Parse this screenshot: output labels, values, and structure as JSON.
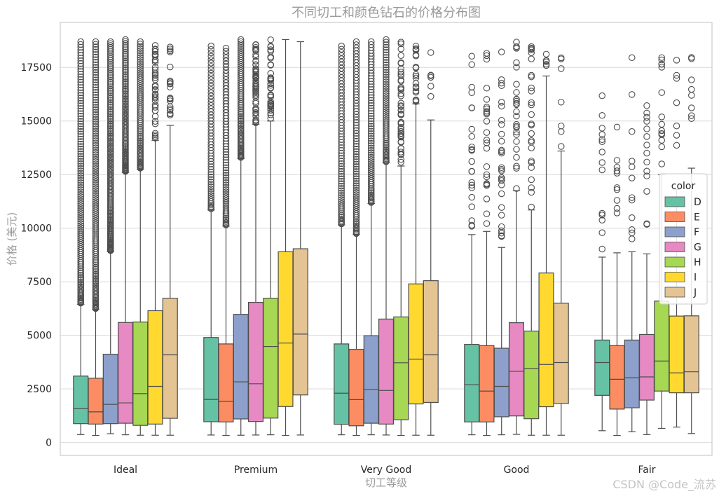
{
  "chart_data": {
    "type": "box",
    "title": "不同切工和颜色钻石的价格分布图",
    "xlabel": "切工等级",
    "ylabel": "价格 (美元)",
    "ylim": [
      -600,
      19600
    ],
    "yticks": [
      0,
      2500,
      5000,
      7500,
      10000,
      12500,
      15000,
      17500
    ],
    "categories": [
      "Ideal",
      "Premium",
      "Very Good",
      "Good",
      "Fair"
    ],
    "legend": {
      "title": "color",
      "position": "right",
      "entries": [
        "D",
        "E",
        "F",
        "G",
        "H",
        "I",
        "J"
      ]
    },
    "series": [
      {
        "name": "D",
        "color": "#66c2a5",
        "boxes": [
          {
            "whislo": 370,
            "q1": 880,
            "med": 1580,
            "q3": 3100,
            "whishi": 6450,
            "fliers": {
              "lo": 6500,
              "hi": 18700,
              "n": 120
            }
          },
          {
            "whislo": 350,
            "q1": 970,
            "med": 2010,
            "q3": 4900,
            "whishi": 10850,
            "fliers": {
              "lo": 10900,
              "hi": 18500,
              "n": 60
            }
          },
          {
            "whislo": 360,
            "q1": 850,
            "med": 2300,
            "q3": 4600,
            "whishi": 10150,
            "fliers": {
              "lo": 10200,
              "hi": 18500,
              "n": 70
            }
          },
          {
            "whislo": 360,
            "q1": 960,
            "med": 2700,
            "q3": 4580,
            "whishi": 9700,
            "fliers": {
              "lo": 10000,
              "hi": 18400,
              "n": 22
            }
          },
          {
            "whislo": 550,
            "q1": 2200,
            "med": 3730,
            "q3": 4780,
            "whishi": 8650,
            "fliers": {
              "lo": 8700,
              "hi": 16400,
              "n": 14
            }
          }
        ]
      },
      {
        "name": "E",
        "color": "#fc8d62",
        "boxes": [
          {
            "whislo": 330,
            "q1": 860,
            "med": 1430,
            "q3": 3000,
            "whishi": 6200,
            "fliers": {
              "lo": 6250,
              "hi": 18700,
              "n": 130
            }
          },
          {
            "whislo": 330,
            "q1": 960,
            "med": 1920,
            "q3": 4600,
            "whishi": 10100,
            "fliers": {
              "lo": 10150,
              "hi": 18400,
              "n": 70
            }
          },
          {
            "whislo": 330,
            "q1": 780,
            "med": 2000,
            "q3": 4350,
            "whishi": 9700,
            "fliers": {
              "lo": 9750,
              "hi": 18700,
              "n": 80
            }
          },
          {
            "whislo": 330,
            "q1": 960,
            "med": 2400,
            "q3": 4520,
            "whishi": 9850,
            "fliers": {
              "lo": 10000,
              "hi": 18200,
              "n": 24
            }
          },
          {
            "whislo": 330,
            "q1": 1560,
            "med": 2950,
            "q3": 4520,
            "whishi": 8850,
            "fliers": {
              "lo": 8950,
              "hi": 15600,
              "n": 10
            }
          }
        ]
      },
      {
        "name": "F",
        "color": "#8da0cb",
        "boxes": [
          {
            "whislo": 410,
            "q1": 880,
            "med": 1780,
            "q3": 4120,
            "whishi": 8900,
            "fliers": {
              "lo": 8950,
              "hi": 18700,
              "n": 140
            }
          },
          {
            "whislo": 340,
            "q1": 1100,
            "med": 2830,
            "q3": 5980,
            "whishi": 13250,
            "fliers": {
              "lo": 13300,
              "hi": 18800,
              "n": 70
            }
          },
          {
            "whislo": 360,
            "q1": 900,
            "med": 2470,
            "q3": 4980,
            "whishi": 11150,
            "fliers": {
              "lo": 11200,
              "hi": 18700,
              "n": 70
            }
          },
          {
            "whislo": 360,
            "q1": 1200,
            "med": 2620,
            "q3": 4400,
            "whishi": 9100,
            "fliers": {
              "lo": 9200,
              "hi": 18600,
              "n": 28
            }
          },
          {
            "whislo": 500,
            "q1": 1620,
            "med": 3020,
            "q3": 4780,
            "whishi": 8900,
            "fliers": {
              "lo": 9500,
              "hi": 18000,
              "n": 12
            }
          }
        ]
      },
      {
        "name": "G",
        "color": "#e78ac3",
        "boxes": [
          {
            "whislo": 360,
            "q1": 900,
            "med": 1850,
            "q3": 5600,
            "whishi": 12600,
            "fliers": {
              "lo": 12650,
              "hi": 18800,
              "n": 90
            }
          },
          {
            "whislo": 350,
            "q1": 980,
            "med": 2740,
            "q3": 6540,
            "whishi": 14850,
            "fliers": {
              "lo": 14900,
              "hi": 18700,
              "n": 50
            }
          },
          {
            "whislo": 350,
            "q1": 860,
            "med": 2430,
            "q3": 5760,
            "whishi": 13050,
            "fliers": {
              "lo": 13100,
              "hi": 18800,
              "n": 60
            }
          },
          {
            "whislo": 380,
            "q1": 1240,
            "med": 3320,
            "q3": 5590,
            "whishi": 11750,
            "fliers": {
              "lo": 11800,
              "hi": 18800,
              "n": 26
            }
          },
          {
            "whislo": 370,
            "q1": 1980,
            "med": 3060,
            "q3": 5040,
            "whishi": 8800,
            "fliers": {
              "lo": 10000,
              "hi": 18300,
              "n": 14
            }
          }
        ]
      },
      {
        "name": "H",
        "color": "#a6d854",
        "boxes": [
          {
            "whislo": 340,
            "q1": 800,
            "med": 2280,
            "q3": 5620,
            "whishi": 12750,
            "fliers": {
              "lo": 12800,
              "hi": 18700,
              "n": 70
            }
          },
          {
            "whislo": 360,
            "q1": 1140,
            "med": 4480,
            "q3": 6730,
            "whishi": 15000,
            "fliers": {
              "lo": 15050,
              "hi": 18800,
              "n": 35
            }
          },
          {
            "whislo": 330,
            "q1": 1060,
            "med": 3720,
            "q3": 5860,
            "whishi": 12900,
            "fliers": {
              "lo": 12950,
              "hi": 18800,
              "n": 45
            }
          },
          {
            "whislo": 340,
            "q1": 1110,
            "med": 3440,
            "q3": 5200,
            "whishi": 10850,
            "fliers": {
              "lo": 10900,
              "hi": 18600,
              "n": 26
            }
          },
          {
            "whislo": 660,
            "q1": 2400,
            "med": 3800,
            "q3": 6600,
            "whishi": 12500,
            "fliers": {
              "lo": 12900,
              "hi": 18500,
              "n": 14
            }
          }
        ]
      },
      {
        "name": "I",
        "color": "#ffd92f",
        "boxes": [
          {
            "whislo": 340,
            "q1": 860,
            "med": 2620,
            "q3": 6150,
            "whishi": 14100,
            "fliers": {
              "lo": 14150,
              "hi": 18800,
              "n": 40
            }
          },
          {
            "whislo": 330,
            "q1": 1680,
            "med": 4640,
            "q3": 8900,
            "whishi": 18800,
            "fliers": null
          },
          {
            "whislo": 340,
            "q1": 1800,
            "med": 3890,
            "q3": 7400,
            "whishi": 15800,
            "fliers": {
              "lo": 15850,
              "hi": 18500,
              "n": 20
            }
          },
          {
            "whislo": 340,
            "q1": 1670,
            "med": 3640,
            "q3": 7910,
            "whishi": 17100,
            "fliers": {
              "lo": 17200,
              "hi": 18600,
              "n": 6
            }
          },
          {
            "whislo": 720,
            "q1": 2320,
            "med": 3250,
            "q3": 5900,
            "whishi": 11800,
            "fliers": {
              "lo": 12000,
              "hi": 18200,
              "n": 7
            }
          }
        ]
      },
      {
        "name": "J",
        "color": "#e5c494",
        "boxes": [
          {
            "whislo": 340,
            "q1": 1130,
            "med": 4090,
            "q3": 6730,
            "whishi": 14800,
            "fliers": {
              "lo": 15200,
              "hi": 18500,
              "n": 20
            }
          },
          {
            "whislo": 350,
            "q1": 2220,
            "med": 5060,
            "q3": 9040,
            "whishi": 18700,
            "fliers": null
          },
          {
            "whislo": 340,
            "q1": 1870,
            "med": 4090,
            "q3": 7550,
            "whishi": 15050,
            "fliers": {
              "lo": 16000,
              "hi": 18400,
              "n": 6
            }
          },
          {
            "whislo": 340,
            "q1": 1820,
            "med": 3730,
            "q3": 6500,
            "whishi": 13600,
            "fliers": {
              "lo": 13650,
              "hi": 18300,
              "n": 7
            }
          },
          {
            "whislo": 420,
            "q1": 2320,
            "med": 3300,
            "q3": 5910,
            "whishi": 12800,
            "fliers": {
              "lo": 12900,
              "hi": 18500,
              "n": 8
            }
          }
        ]
      }
    ]
  },
  "watermark": "CSDN @Code_流苏"
}
